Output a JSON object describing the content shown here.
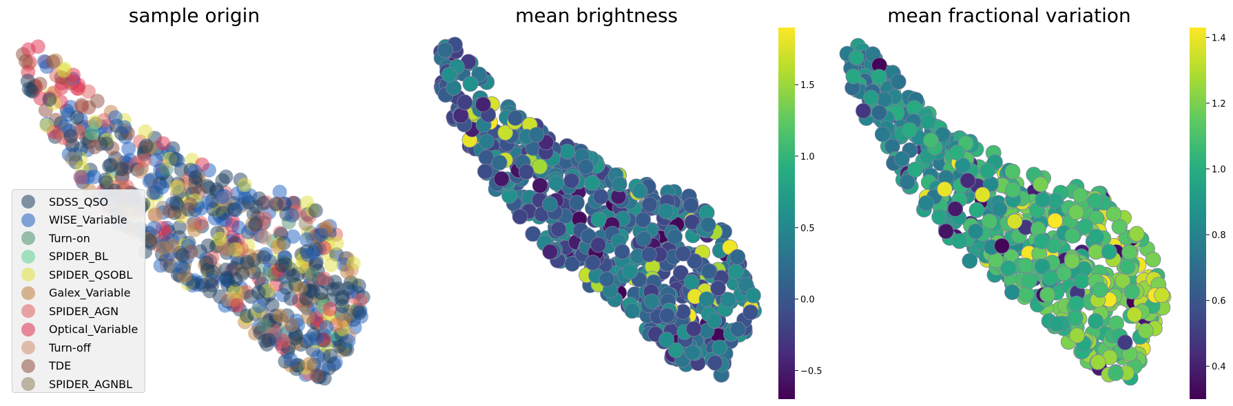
{
  "chart_data": [
    {
      "type": "scatter",
      "title": "sample origin",
      "xlabel": "",
      "ylabel": "",
      "grid": false,
      "legend_placement": "lower-left",
      "series": [
        {
          "name": "SDSS_QSO",
          "color": "#1f3f5f"
        },
        {
          "name": "WISE_Variable",
          "color": "#1f5fbf"
        },
        {
          "name": "Turn-on",
          "color": "#4f8f6f"
        },
        {
          "name": "SPIDER_BL",
          "color": "#5fcf8f"
        },
        {
          "name": "SPIDER_QSOBL",
          "color": "#e0e040"
        },
        {
          "name": "Galex_Variable",
          "color": "#bf7f3f"
        },
        {
          "name": "SPIDER_AGN",
          "color": "#df5f5f"
        },
        {
          "name": "Optical_Variable",
          "color": "#df2f4f"
        },
        {
          "name": "Turn-off",
          "color": "#cf8f6f"
        },
        {
          "name": "TDE",
          "color": "#8f4f3f"
        },
        {
          "name": "SPIDER_AGNBL",
          "color": "#8f7f5f"
        }
      ]
    },
    {
      "type": "scatter",
      "title": "mean brightness",
      "xlabel": "",
      "ylabel": "",
      "grid": false,
      "colorscale": "viridis",
      "colorbar_range": [
        -0.7,
        1.9
      ],
      "colorbar_ticks": [
        -0.5,
        0.0,
        0.5,
        1.0,
        1.5
      ],
      "colorbar_tick_labels": [
        "−0.5",
        "0.0",
        "0.5",
        "1.0",
        "1.5"
      ]
    },
    {
      "type": "scatter",
      "title": "mean fractional variation",
      "xlabel": "",
      "ylabel": "",
      "grid": false,
      "colorscale": "viridis",
      "colorbar_range": [
        0.3,
        1.43
      ],
      "colorbar_ticks": [
        0.4,
        0.6,
        0.8,
        1.0,
        1.2,
        1.4
      ],
      "colorbar_tick_labels": [
        "0.4",
        "0.6",
        "0.8",
        "1.0",
        "1.2",
        "1.4"
      ]
    }
  ]
}
